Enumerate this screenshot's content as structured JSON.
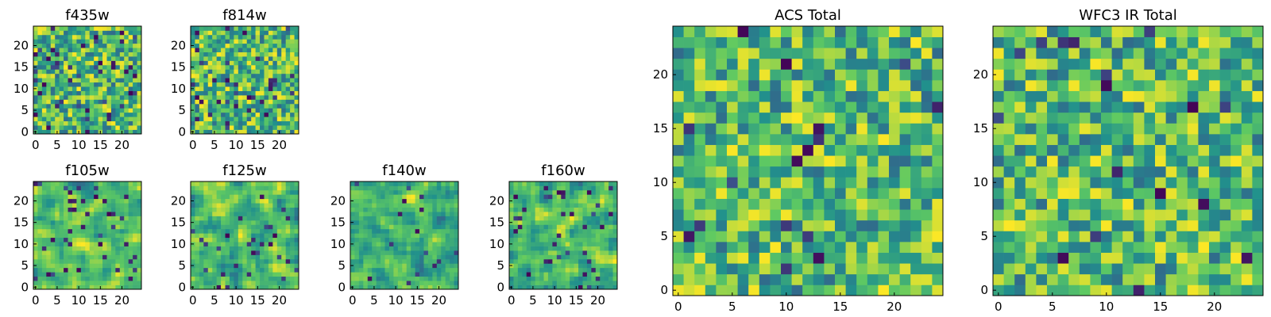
{
  "figure": {
    "colormap": [
      "#440154",
      "#3b528b",
      "#21918c",
      "#5ec962",
      "#fde725"
    ],
    "frame_color": "#000000",
    "background": "#ffffff"
  },
  "chart_data": [
    {
      "type": "heatmap",
      "title": "f435w",
      "grid": [
        25,
        25
      ],
      "xlim": [
        -0.5,
        24.5
      ],
      "ylim": [
        -0.5,
        24.5
      ],
      "xticks": [
        0,
        5,
        10,
        15,
        20
      ],
      "yticks": [
        0,
        5,
        10,
        15,
        20
      ],
      "seed": 11,
      "noise": "fine",
      "dark_fraction": 0.06
    },
    {
      "type": "heatmap",
      "title": "f814w",
      "grid": [
        25,
        25
      ],
      "xlim": [
        -0.5,
        24.5
      ],
      "ylim": [
        -0.5,
        24.5
      ],
      "xticks": [
        0,
        5,
        10,
        15,
        20
      ],
      "yticks": [
        0,
        5,
        10,
        15,
        20
      ],
      "seed": 23,
      "noise": "fine",
      "dark_fraction": 0.05
    },
    {
      "type": "heatmap",
      "title": "f105w",
      "grid": [
        25,
        25
      ],
      "xlim": [
        -0.5,
        24.5
      ],
      "ylim": [
        -0.5,
        24.5
      ],
      "xticks": [
        0,
        5,
        10,
        15,
        20
      ],
      "yticks": [
        0,
        5,
        10,
        15,
        20
      ],
      "seed": 37,
      "noise": "smooth",
      "dark_fraction": 0.05
    },
    {
      "type": "heatmap",
      "title": "f125w",
      "grid": [
        25,
        25
      ],
      "xlim": [
        -0.5,
        24.5
      ],
      "ylim": [
        -0.5,
        24.5
      ],
      "xticks": [
        0,
        5,
        10,
        15,
        20
      ],
      "yticks": [
        0,
        5,
        10,
        15,
        20
      ],
      "seed": 41,
      "noise": "smooth",
      "dark_fraction": 0.05
    },
    {
      "type": "heatmap",
      "title": "f140w",
      "grid": [
        25,
        25
      ],
      "xlim": [
        -0.5,
        24.5
      ],
      "ylim": [
        -0.5,
        24.5
      ],
      "xticks": [
        0,
        5,
        10,
        15,
        20
      ],
      "yticks": [
        0,
        5,
        10,
        15,
        20
      ],
      "seed": 53,
      "noise": "smooth",
      "dark_fraction": 0.02
    },
    {
      "type": "heatmap",
      "title": "f160w",
      "grid": [
        25,
        25
      ],
      "xlim": [
        -0.5,
        24.5
      ],
      "ylim": [
        -0.5,
        24.5
      ],
      "xticks": [
        0,
        5,
        10,
        15,
        20
      ],
      "yticks": [
        0,
        5,
        10,
        15,
        20
      ],
      "seed": 67,
      "noise": "smooth",
      "dark_fraction": 0.06
    },
    {
      "type": "heatmap",
      "title": "ACS Total",
      "grid": [
        25,
        25
      ],
      "xlim": [
        -0.5,
        24.5
      ],
      "ylim": [
        -0.5,
        24.5
      ],
      "xticks": [
        0,
        5,
        10,
        15,
        20
      ],
      "yticks": [
        0,
        5,
        10,
        15,
        20
      ],
      "seed": 79,
      "noise": "fine",
      "dark_fraction": 0.025
    },
    {
      "type": "heatmap",
      "title": "WFC3 IR Total",
      "grid": [
        25,
        25
      ],
      "xlim": [
        -0.5,
        24.5
      ],
      "ylim": [
        -0.5,
        24.5
      ],
      "xticks": [
        0,
        5,
        10,
        15,
        20
      ],
      "yticks": [
        0,
        5,
        10,
        15,
        20
      ],
      "seed": 97,
      "noise": "fine",
      "dark_fraction": 0.025
    }
  ]
}
